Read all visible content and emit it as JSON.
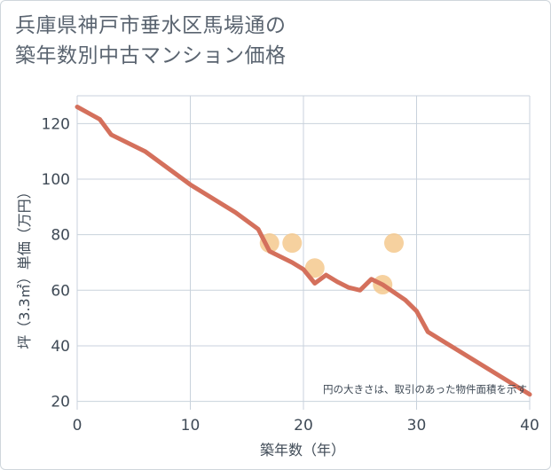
{
  "chart_data": {
    "type": "line",
    "title_lines": [
      "兵庫県神戸市垂水区馬場通の",
      "築年数別中古マンション価格"
    ],
    "xlabel": "築年数（年）",
    "ylabel": "坪（3.3㎡）単価（万円）",
    "xlim": [
      0,
      40
    ],
    "ylim": [
      17,
      130
    ],
    "x_ticks": [
      0,
      10,
      20,
      30,
      40
    ],
    "y_ticks": [
      20,
      40,
      60,
      80,
      100,
      120
    ],
    "grid": true,
    "note": "円の大きさは、取引のあった物件面積を示す",
    "series": [
      {
        "name": "trend",
        "color": "#d4705c",
        "points": [
          [
            0,
            126
          ],
          [
            2,
            121.5
          ],
          [
            3,
            116
          ],
          [
            6,
            110
          ],
          [
            10,
            98
          ],
          [
            14,
            88
          ],
          [
            16,
            82
          ],
          [
            17,
            74
          ],
          [
            19,
            70
          ],
          [
            20,
            67.5
          ],
          [
            21,
            62.5
          ],
          [
            22,
            65.5
          ],
          [
            23,
            63
          ],
          [
            24,
            61
          ],
          [
            25,
            60
          ],
          [
            26,
            64
          ],
          [
            27,
            62
          ],
          [
            29,
            56.5
          ],
          [
            30,
            52.5
          ],
          [
            31,
            45
          ],
          [
            40,
            22.5
          ]
        ]
      }
    ],
    "scatter": {
      "name": "transactions",
      "color": "#f5c98e",
      "points": [
        [
          17,
          77
        ],
        [
          19,
          77
        ],
        [
          21,
          68
        ],
        [
          27,
          62
        ],
        [
          28,
          77
        ]
      ]
    }
  }
}
